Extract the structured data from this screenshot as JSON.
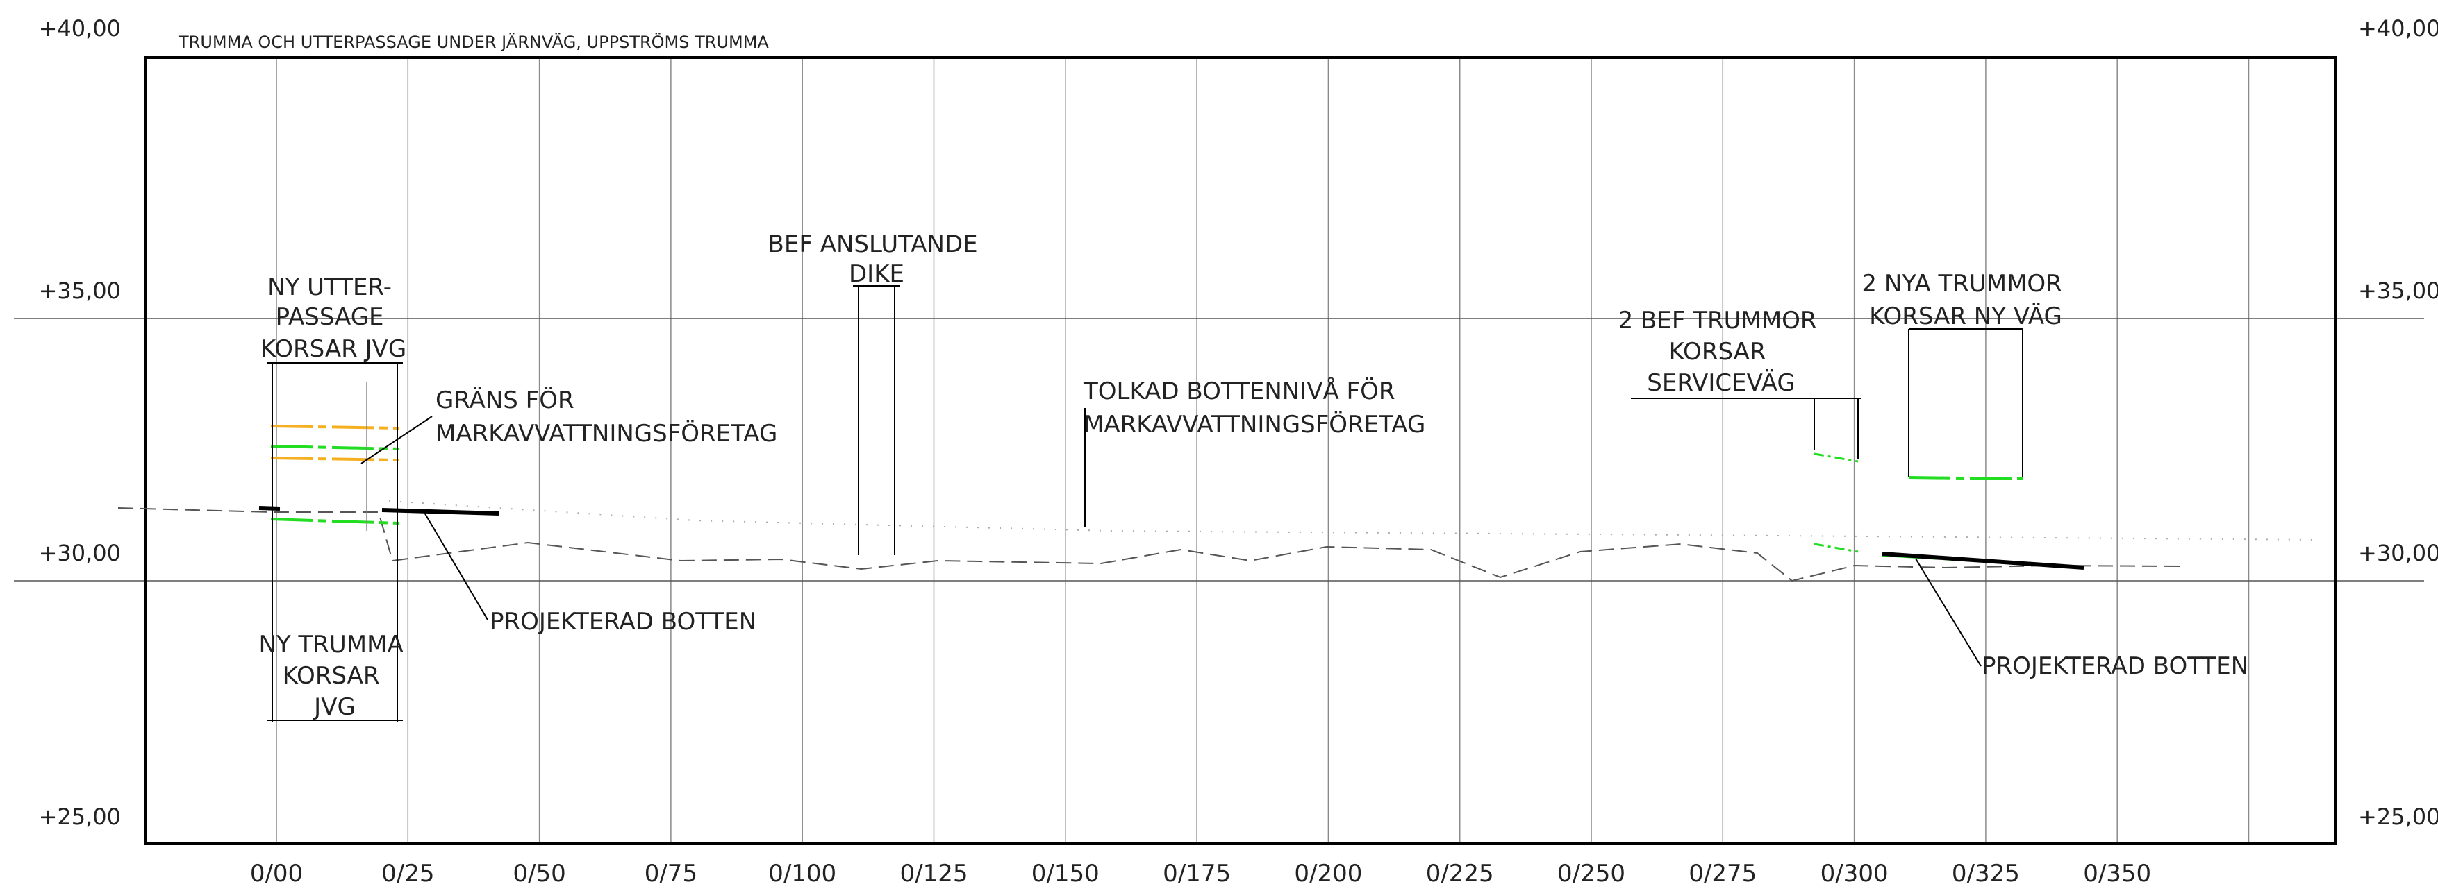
{
  "title": "TRUMMA OCH UTTERPASSAGE UNDER JÄRNVÄG, UPPSTRÖMS TRUMMA",
  "elevation_labels": [
    "+40,00",
    "+35,00",
    "+30,00",
    "+25,00"
  ],
  "chainage_labels": [
    "0/00",
    "0/25",
    "0/50",
    "0/75",
    "0/100",
    "0/125",
    "0/150",
    "0/175",
    "0/200",
    "0/225",
    "0/250",
    "0/275",
    "0/300",
    "0/325",
    "0/350"
  ],
  "annotations": {
    "ny_utterpassage": [
      "NY UTTER-",
      "PASSAGE",
      "KORSAR JVG"
    ],
    "grans": [
      "GRÄNS FÖR",
      "MARKAVVATTNINGSFÖRETAG"
    ],
    "ny_trumma": [
      "NY TRUMMA",
      "KORSAR",
      "JVG"
    ],
    "projekterad_botten_left": "PROJEKTERAD BOTTEN",
    "bef_anslutande": [
      "BEF ANSLUTANDE",
      "DIKE"
    ],
    "tolkad": [
      "TOLKAD BOTTENNIVÅ FÖR",
      "MARKAVVATTNINGSFÖRETAG"
    ],
    "bef_trummor": [
      "2 BEF TRUMMOR",
      "KORSAR",
      "SERVICEVÄG"
    ],
    "nya_trummor": [
      "2 NYA TRUMMOR",
      "KORSAR NY VÄG"
    ],
    "projekterad_botten_right": "PROJEKTERAD BOTTEN"
  },
  "colors": {
    "frame": "#000000",
    "grid": "#8a8a8a",
    "ground": "#555555",
    "green": "#22dd22",
    "orange": "#f5b021"
  }
}
